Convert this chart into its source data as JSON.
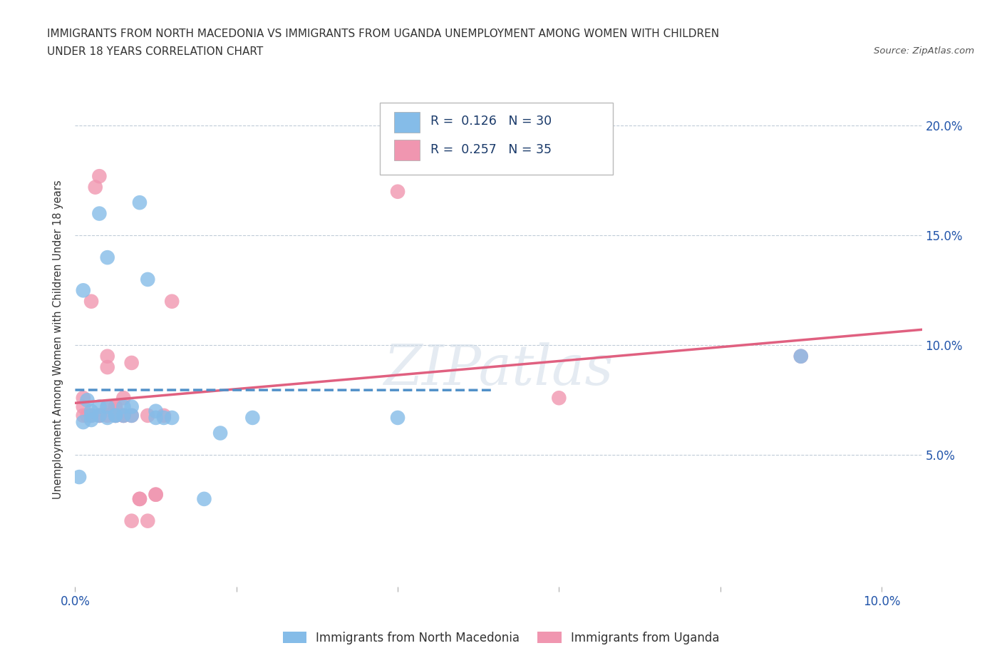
{
  "title_line1": "IMMIGRANTS FROM NORTH MACEDONIA VS IMMIGRANTS FROM UGANDA UNEMPLOYMENT AMONG WOMEN WITH CHILDREN",
  "title_line2": "UNDER 18 YEARS CORRELATION CHART",
  "source": "Source: ZipAtlas.com",
  "ylabel": "Unemployment Among Women with Children Under 18 years",
  "xlim": [
    0.0,
    0.105
  ],
  "ylim": [
    -0.01,
    0.215
  ],
  "r_macedonia": 0.126,
  "n_macedonia": 30,
  "r_uganda": 0.257,
  "n_uganda": 35,
  "color_macedonia": "#85bce8",
  "color_uganda": "#f096b0",
  "trendline_color_macedonia": "#5090c8",
  "trendline_color_uganda": "#e06080",
  "legend_label_macedonia": "Immigrants from North Macedonia",
  "legend_label_uganda": "Immigrants from Uganda",
  "macedonia_points": [
    [
      0.0005,
      0.04
    ],
    [
      0.001,
      0.065
    ],
    [
      0.001,
      0.125
    ],
    [
      0.0015,
      0.075
    ],
    [
      0.002,
      0.07
    ],
    [
      0.002,
      0.068
    ],
    [
      0.002,
      0.066
    ],
    [
      0.003,
      0.068
    ],
    [
      0.003,
      0.072
    ],
    [
      0.003,
      0.16
    ],
    [
      0.004,
      0.067
    ],
    [
      0.004,
      0.14
    ],
    [
      0.004,
      0.072
    ],
    [
      0.005,
      0.068
    ],
    [
      0.005,
      0.068
    ],
    [
      0.006,
      0.068
    ],
    [
      0.006,
      0.072
    ],
    [
      0.007,
      0.068
    ],
    [
      0.007,
      0.072
    ],
    [
      0.008,
      0.165
    ],
    [
      0.009,
      0.13
    ],
    [
      0.01,
      0.067
    ],
    [
      0.01,
      0.07
    ],
    [
      0.011,
      0.067
    ],
    [
      0.012,
      0.067
    ],
    [
      0.016,
      0.03
    ],
    [
      0.018,
      0.06
    ],
    [
      0.022,
      0.067
    ],
    [
      0.04,
      0.067
    ],
    [
      0.09,
      0.095
    ]
  ],
  "uganda_points": [
    [
      0.001,
      0.068
    ],
    [
      0.001,
      0.072
    ],
    [
      0.001,
      0.076
    ],
    [
      0.0015,
      0.068
    ],
    [
      0.002,
      0.068
    ],
    [
      0.002,
      0.12
    ],
    [
      0.0025,
      0.172
    ],
    [
      0.003,
      0.177
    ],
    [
      0.003,
      0.068
    ],
    [
      0.003,
      0.068
    ],
    [
      0.004,
      0.09
    ],
    [
      0.004,
      0.095
    ],
    [
      0.004,
      0.072
    ],
    [
      0.004,
      0.068
    ],
    [
      0.005,
      0.068
    ],
    [
      0.005,
      0.068
    ],
    [
      0.005,
      0.072
    ],
    [
      0.005,
      0.072
    ],
    [
      0.006,
      0.068
    ],
    [
      0.006,
      0.068
    ],
    [
      0.006,
      0.076
    ],
    [
      0.007,
      0.092
    ],
    [
      0.007,
      0.068
    ],
    [
      0.007,
      0.02
    ],
    [
      0.008,
      0.03
    ],
    [
      0.008,
      0.03
    ],
    [
      0.009,
      0.02
    ],
    [
      0.009,
      0.068
    ],
    [
      0.01,
      0.032
    ],
    [
      0.01,
      0.032
    ],
    [
      0.011,
      0.068
    ],
    [
      0.012,
      0.12
    ],
    [
      0.04,
      0.17
    ],
    [
      0.06,
      0.076
    ],
    [
      0.09,
      0.095
    ]
  ]
}
